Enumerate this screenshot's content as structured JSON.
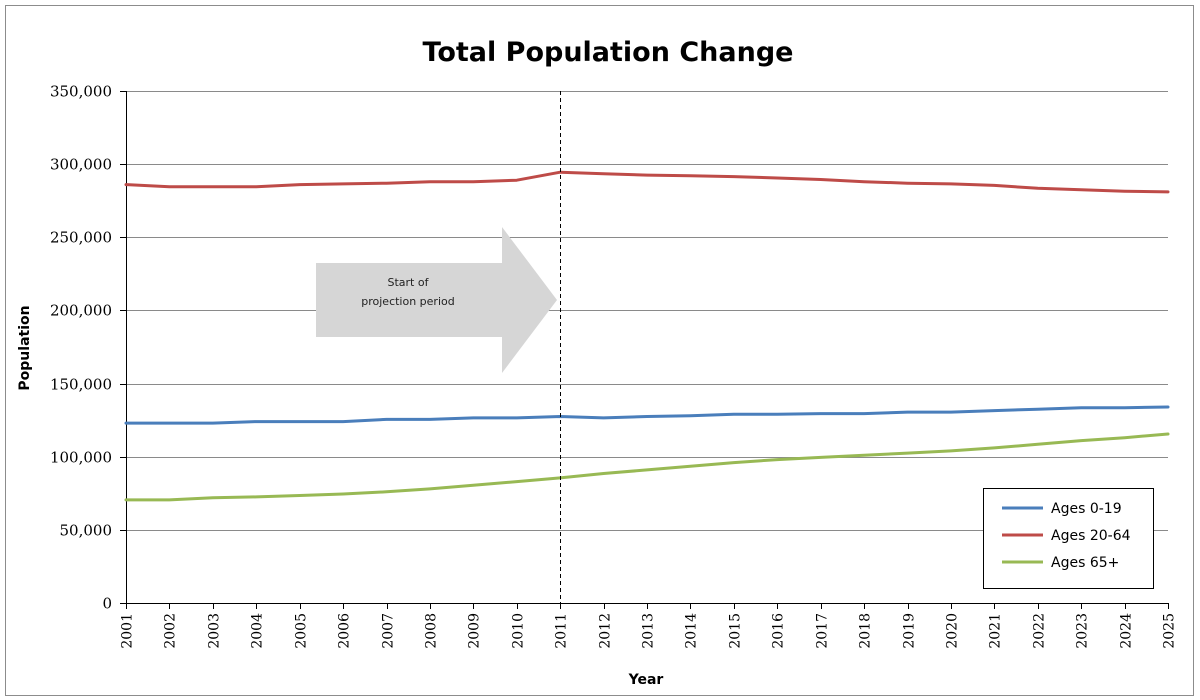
{
  "chart_data": {
    "type": "line",
    "title": "Total Population Change",
    "xlabel": "Year",
    "ylabel": "Population",
    "ylim": [
      0,
      350000
    ],
    "yticks": [
      0,
      50000,
      100000,
      150000,
      200000,
      250000,
      300000,
      350000
    ],
    "ytick_labels": [
      "0",
      "50,000",
      "100,000",
      "150,000",
      "200,000",
      "250,000",
      "300,000",
      "350,000"
    ],
    "categories": [
      "2001",
      "2002",
      "2003",
      "2004",
      "2005",
      "2006",
      "2007",
      "2008",
      "2009",
      "2010",
      "2011",
      "2012",
      "2013",
      "2014",
      "2015",
      "2016",
      "2017",
      "2018",
      "2019",
      "2020",
      "2021",
      "2022",
      "2023",
      "2024",
      "2025"
    ],
    "grid": "horizontal",
    "legend_position": "bottom-right",
    "series": [
      {
        "name": "Ages 0-19",
        "color": "#4a7ebb",
        "values": [
          123000,
          123000,
          123000,
          124000,
          124000,
          124000,
          125500,
          125500,
          126500,
          126500,
          127500,
          126500,
          127500,
          128000,
          129000,
          129000,
          129500,
          129500,
          130500,
          130500,
          131500,
          132500,
          133500,
          133500,
          134000
        ]
      },
      {
        "name": "Ages 20-64",
        "color": "#be4b48",
        "values": [
          286000,
          284500,
          284500,
          284500,
          286000,
          286500,
          287000,
          288000,
          288000,
          289000,
          294500,
          293500,
          292500,
          292000,
          291500,
          290500,
          289500,
          288000,
          287000,
          286500,
          285500,
          283500,
          282500,
          281500,
          281000
        ]
      },
      {
        "name": "Ages 65+",
        "color": "#98b954",
        "values": [
          70500,
          70500,
          72000,
          72500,
          73500,
          74500,
          76000,
          78000,
          80500,
          83000,
          85500,
          88500,
          91000,
          93500,
          96000,
          98000,
          99500,
          101000,
          102500,
          104000,
          106000,
          108500,
          111000,
          113000,
          115500
        ]
      }
    ],
    "annotations": {
      "projection_line_year": "2011",
      "arrow_line1": "Start of",
      "arrow_line2": "projection period"
    }
  }
}
